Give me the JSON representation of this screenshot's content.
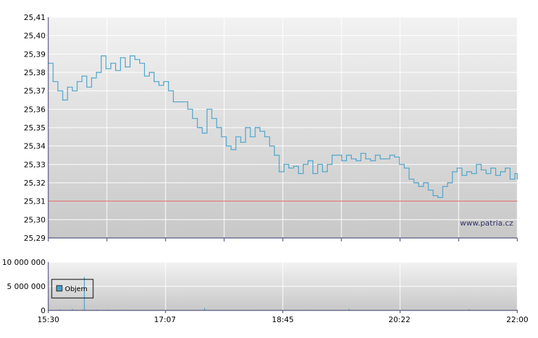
{
  "chart_data": [
    {
      "type": "line",
      "title": "",
      "xlabel": "",
      "ylabel": "",
      "ylim": [
        25.29,
        25.41
      ],
      "xlim": [
        "15:30",
        "22:00"
      ],
      "grid": true,
      "y_ticks": [
        "25,29",
        "25,30",
        "25,31",
        "25,32",
        "25,33",
        "25,34",
        "25,35",
        "25,36",
        "25,37",
        "25,38",
        "25,39",
        "25,40",
        "25,41"
      ],
      "reference_line": {
        "value": 25.31,
        "color": "#e06060"
      },
      "watermark": "www.patria.cz",
      "colors": {
        "line": "#4aa3cc",
        "plot_bg_top": "#f2f2f2",
        "plot_bg_bottom": "#c8c8c8",
        "axis": "#333366"
      },
      "series": [
        {
          "x": [
            "15:30",
            "15:34",
            "15:38",
            "15:42",
            "15:46",
            "15:50",
            "15:54",
            "15:58",
            "16:02",
            "16:06",
            "16:10",
            "16:14",
            "16:18",
            "16:22",
            "16:26",
            "16:30",
            "16:34",
            "16:38",
            "16:42",
            "16:46",
            "16:50",
            "16:54",
            "16:58",
            "17:02",
            "17:06",
            "17:10",
            "17:14",
            "17:18",
            "17:22",
            "17:26",
            "17:30",
            "17:34",
            "17:38",
            "17:42",
            "17:46",
            "17:50",
            "17:54",
            "17:58",
            "18:02",
            "18:06",
            "18:10",
            "18:14",
            "18:18",
            "18:22",
            "18:26",
            "18:30",
            "18:34",
            "18:38",
            "18:42",
            "18:46",
            "18:50",
            "18:54",
            "18:58",
            "19:02",
            "19:06",
            "19:10",
            "19:14",
            "19:18",
            "19:22",
            "19:26",
            "19:30",
            "19:34",
            "19:38",
            "19:42",
            "19:46",
            "19:50",
            "19:54",
            "19:58",
            "20:02",
            "20:06",
            "20:10",
            "20:14",
            "20:18",
            "20:22",
            "20:26",
            "20:30",
            "20:34",
            "20:38",
            "20:42",
            "20:46",
            "20:50",
            "20:54",
            "20:58",
            "21:02",
            "21:06",
            "21:10",
            "21:14",
            "21:18",
            "21:22",
            "21:26",
            "21:30",
            "21:34",
            "21:38",
            "21:42",
            "21:46",
            "21:50",
            "21:54",
            "21:58",
            "22:00"
          ],
          "values": [
            25.385,
            25.375,
            25.37,
            25.365,
            25.372,
            25.37,
            25.375,
            25.378,
            25.372,
            25.377,
            25.38,
            25.389,
            25.382,
            25.385,
            25.381,
            25.388,
            25.383,
            25.389,
            25.387,
            25.385,
            25.378,
            25.38,
            25.375,
            25.373,
            25.375,
            25.37,
            25.364,
            25.364,
            25.364,
            25.36,
            25.355,
            25.35,
            25.347,
            25.36,
            25.355,
            25.35,
            25.345,
            25.34,
            25.338,
            25.345,
            25.342,
            25.35,
            25.345,
            25.35,
            25.348,
            25.345,
            25.34,
            25.335,
            25.326,
            25.33,
            25.328,
            25.329,
            25.325,
            25.33,
            25.332,
            25.325,
            25.33,
            25.326,
            25.33,
            25.335,
            25.335,
            25.332,
            25.335,
            25.333,
            25.332,
            25.336,
            25.333,
            25.332,
            25.335,
            25.333,
            25.333,
            25.335,
            25.334,
            25.33,
            25.328,
            25.322,
            25.32,
            25.318,
            25.32,
            25.316,
            25.313,
            25.312,
            25.318,
            25.32,
            25.326,
            25.328,
            25.324,
            25.326,
            25.325,
            25.33,
            25.327,
            25.325,
            25.328,
            25.324,
            25.326,
            25.328,
            25.322,
            25.325,
            25.322
          ]
        }
      ]
    },
    {
      "type": "bar",
      "title": "",
      "xlabel": "",
      "ylabel": "",
      "ylim": [
        0,
        10000000
      ],
      "y_ticks": [
        "0",
        "5 000 000",
        "10 000 000"
      ],
      "x_ticks": [
        "15:30",
        "17:07",
        "18:45",
        "20:22",
        "22:00"
      ],
      "colors": {
        "bar": "#4aa3cc",
        "legend_box": "#4aa3cc"
      },
      "series": [
        {
          "name": "Objem",
          "x": [
            "15:30",
            "15:40",
            "15:50",
            "16:00",
            "16:10",
            "16:20",
            "16:30",
            "16:40",
            "16:50",
            "17:00",
            "17:10",
            "17:20",
            "17:30",
            "17:40",
            "17:50",
            "18:00",
            "18:10",
            "18:20",
            "18:30",
            "18:40",
            "18:50",
            "19:00",
            "19:10",
            "19:20",
            "19:30",
            "19:40",
            "19:50",
            "20:00",
            "20:10",
            "20:20",
            "20:30",
            "20:40",
            "20:50",
            "21:00",
            "21:10",
            "21:20",
            "21:30",
            "21:40",
            "21:50",
            "22:00"
          ],
          "values": [
            150000,
            200000,
            300000,
            6900000,
            150000,
            120000,
            100000,
            80000,
            90000,
            70000,
            60000,
            50000,
            60000,
            500000,
            70000,
            60000,
            50000,
            50000,
            60000,
            40000,
            50000,
            60000,
            50000,
            40000,
            50000,
            300000,
            60000,
            50000,
            40000,
            70000,
            60000,
            50000,
            50000,
            40000,
            50000,
            200000,
            60000,
            50000,
            40000,
            150000
          ]
        }
      ]
    }
  ]
}
